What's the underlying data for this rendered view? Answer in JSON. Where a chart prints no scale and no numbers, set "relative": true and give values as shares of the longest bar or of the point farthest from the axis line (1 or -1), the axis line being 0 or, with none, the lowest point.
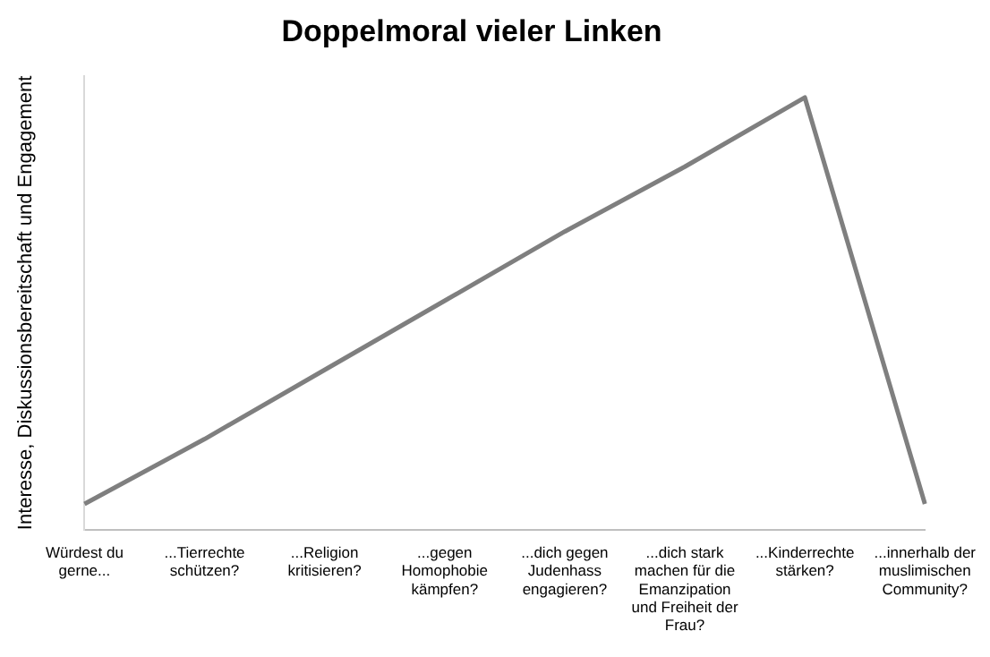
{
  "chart_data": {
    "type": "line",
    "title": "Doppelmoral vieler Linken",
    "ylabel": "Interesse, Diskussionsbereitschaft und Engagement",
    "relative": true,
    "categories": [
      "Würdest du gerne...",
      "...Tierrechte schützen?",
      "...Religion kritisieren?",
      "...gegen Homophobie kämpfen?",
      "...dich gegen Judenhass engagieren?",
      "...dich stark machen für die Emanzipation und Freiheit der Frau?",
      "...Kinderrechte stärken?",
      "...innerhalb der muslimischen Community?"
    ],
    "series": [
      {
        "color": "#7f7f7f",
        "values": [
          0.06,
          0.21,
          0.37,
          0.53,
          0.69,
          0.84,
          1,
          0.06
        ]
      }
    ],
    "grid": false,
    "legend": false,
    "marker": "none",
    "line_style": "solid"
  }
}
